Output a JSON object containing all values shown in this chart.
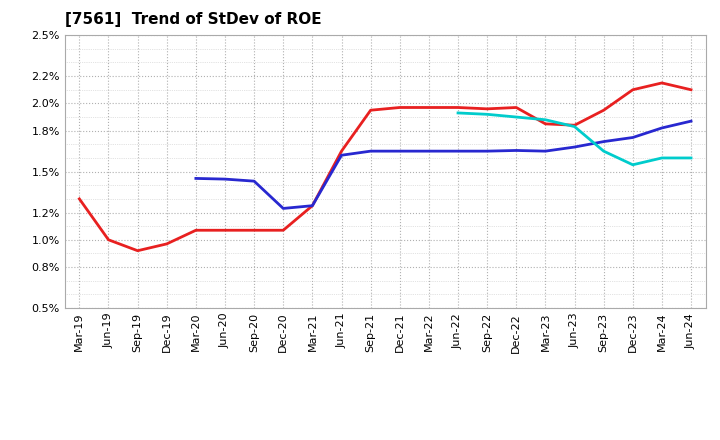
{
  "title": "[7561]  Trend of StDev of ROE",
  "x_labels": [
    "Mar-19",
    "Jun-19",
    "Sep-19",
    "Dec-19",
    "Mar-20",
    "Jun-20",
    "Sep-20",
    "Dec-20",
    "Mar-21",
    "Jun-21",
    "Sep-21",
    "Dec-21",
    "Mar-22",
    "Jun-22",
    "Sep-22",
    "Dec-22",
    "Mar-23",
    "Jun-23",
    "Sep-23",
    "Dec-23",
    "Mar-24",
    "Jun-24"
  ],
  "ylim": [
    0.005,
    0.025
  ],
  "ytick_positions": [
    0.005,
    0.008,
    0.01,
    0.012,
    0.015,
    0.018,
    0.02,
    0.022,
    0.025
  ],
  "ytick_labels": [
    "0.5%",
    "0.8%",
    "1.0%",
    "1.2%",
    "1.5%",
    "1.8%",
    "2.0%",
    "2.2%",
    "2.5%"
  ],
  "series_3yr_x": [
    0,
    1,
    2,
    3,
    4,
    5,
    6,
    7,
    8,
    9,
    10,
    11,
    12,
    13,
    14,
    15,
    16,
    17,
    18,
    19,
    20,
    21
  ],
  "series_3yr_y": [
    0.013,
    0.01,
    0.0092,
    0.0097,
    0.0107,
    0.0107,
    0.0107,
    0.0107,
    0.0125,
    0.0165,
    0.0195,
    0.0197,
    0.0197,
    0.0197,
    0.0196,
    0.0197,
    0.0185,
    0.0184,
    0.0195,
    0.021,
    0.0215,
    0.021
  ],
  "series_5yr_x": [
    4,
    5,
    6,
    7,
    8,
    9,
    10,
    11,
    12,
    13,
    14,
    15,
    16,
    17,
    18,
    19,
    20,
    21
  ],
  "series_5yr_y": [
    0.0145,
    0.01445,
    0.0143,
    0.0123,
    0.0125,
    0.0162,
    0.0165,
    0.0165,
    0.0165,
    0.0165,
    0.0165,
    0.01655,
    0.0165,
    0.0168,
    0.0172,
    0.0175,
    0.0182,
    0.0187
  ],
  "series_7yr_x": [
    13,
    14,
    15,
    16,
    17,
    18,
    19,
    20,
    21
  ],
  "series_7yr_y": [
    0.0193,
    0.0192,
    0.019,
    0.0188,
    0.0183,
    0.0165,
    0.0155,
    0.016,
    0.016
  ],
  "series_10yr_x": [],
  "series_10yr_y": [],
  "color_3yr": "#e82020",
  "color_5yr": "#2828d0",
  "color_7yr": "#00cccc",
  "color_10yr": "#00a020",
  "background_color": "#ffffff",
  "grid_color": "#b0b0b0",
  "title_fontsize": 11,
  "tick_fontsize": 8
}
